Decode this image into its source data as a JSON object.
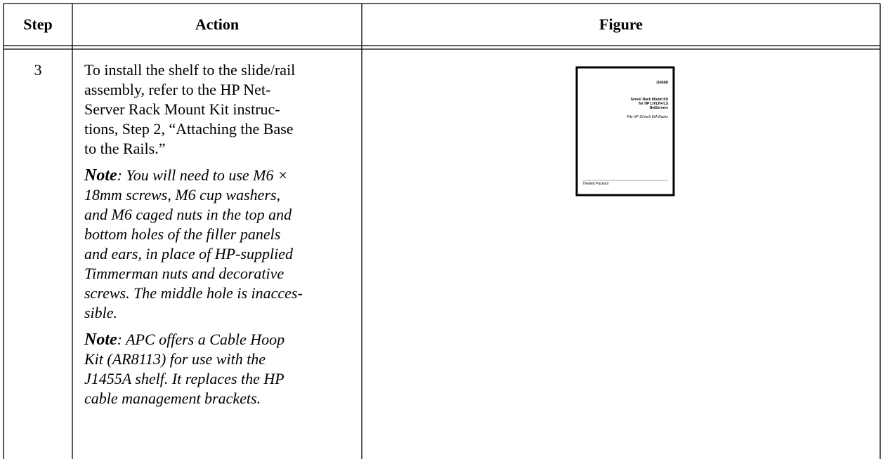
{
  "table": {
    "headers": [
      "Step",
      "Action",
      "Figure"
    ],
    "rows": [
      {
        "step": "3",
        "action": [
          {
            "lines": [
              "To install the shelf to the slide/rail",
              "assembly, refer to the HP Net-",
              "Server Rack Mount Kit instruc-",
              "tions, Step 2, “Attaching the Base",
              "to the Rails.”"
            ]
          },
          {
            "label": "Note",
            "lines": [
              ": You will need to use M6 ×",
              "18mm screws, M6 cup washers,",
              "and M6 caged nuts in the top and",
              "bottom holes of the filler panels",
              "and ears, in place of HP-supplied",
              "Timmerman nuts and decorative",
              "screws. The middle hole is inacces-",
              "sible."
            ]
          },
          {
            "label": "Note",
            "lines": [
              ": APC offers a Cable Hoop",
              "Kit (AR8113) for use with the",
              "J1455A shelf. It replaces the HP",
              "cable management brackets."
            ]
          }
        ],
        "figure": {
          "code": "J1455B",
          "title_lines": [
            "Server Rack Mount Kit",
            "for HP LH/LH+/LS",
            "NetServers"
          ],
          "subtitle": "Fits HP 19-inch EIA Racks",
          "footer": "Hewlett Packard"
        }
      }
    ]
  }
}
